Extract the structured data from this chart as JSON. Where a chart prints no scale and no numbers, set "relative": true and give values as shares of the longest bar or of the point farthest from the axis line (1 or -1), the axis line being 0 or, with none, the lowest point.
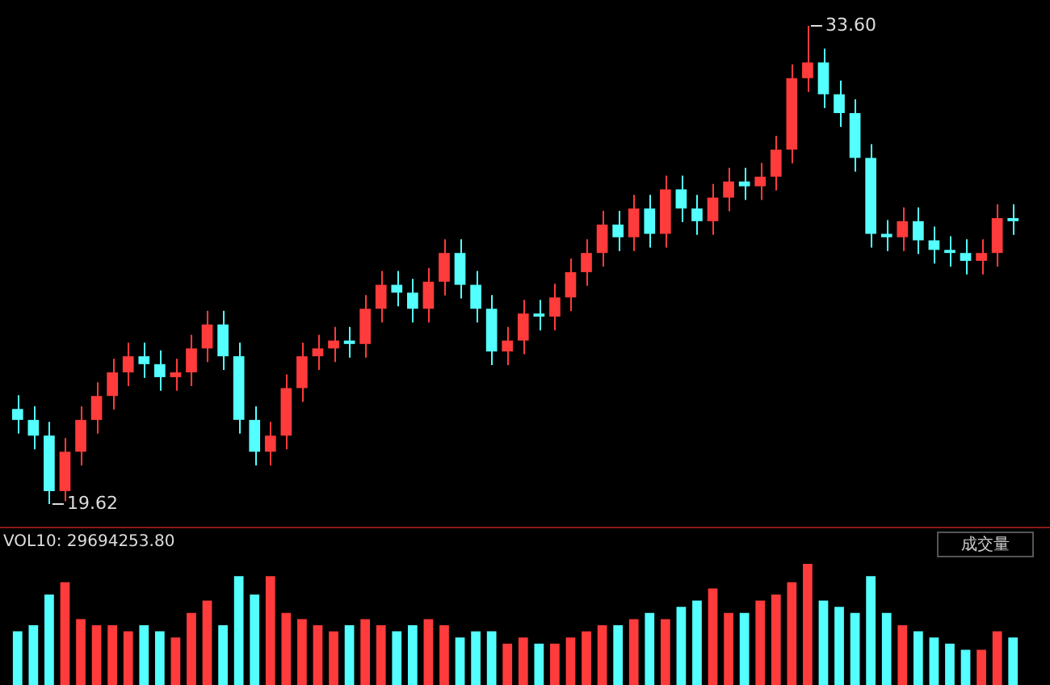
{
  "chart_data": [
    {
      "type": "candlestick",
      "tick_labels": false,
      "categories": [
        null,
        null,
        null,
        null,
        null,
        null,
        null,
        null,
        null,
        null,
        null,
        null,
        null,
        null,
        null,
        null,
        null,
        null,
        null,
        null,
        null,
        null,
        null,
        null,
        null,
        null,
        null,
        null,
        null,
        null,
        null,
        null,
        null,
        null,
        null,
        null,
        null,
        null,
        null,
        null,
        null,
        null,
        null,
        null,
        null,
        null,
        null,
        null,
        null,
        null,
        null,
        null,
        null,
        null,
        null,
        null,
        null,
        null,
        null,
        null,
        null,
        null,
        null,
        null
      ],
      "ohlc": [
        [
          22.4,
          22.8,
          21.68,
          22.08
        ],
        [
          22.08,
          22.48,
          21.22,
          21.62
        ],
        [
          21.62,
          22.02,
          19.62,
          20.0
        ],
        [
          20.0,
          21.55,
          19.7,
          21.15
        ],
        [
          21.15,
          22.48,
          20.75,
          22.08
        ],
        [
          22.08,
          23.18,
          21.68,
          22.78
        ],
        [
          22.78,
          23.87,
          22.38,
          23.47
        ],
        [
          23.47,
          24.34,
          23.07,
          23.94
        ],
        [
          23.94,
          24.34,
          23.31,
          23.71
        ],
        [
          23.71,
          24.11,
          22.93,
          23.33
        ],
        [
          23.33,
          23.87,
          22.93,
          23.47
        ],
        [
          23.47,
          24.57,
          23.07,
          24.17
        ],
        [
          24.17,
          25.27,
          23.77,
          24.87
        ],
        [
          24.87,
          25.27,
          23.54,
          23.94
        ],
        [
          23.94,
          24.34,
          21.68,
          22.08
        ],
        [
          22.08,
          22.48,
          20.75,
          21.15
        ],
        [
          21.15,
          22.02,
          20.75,
          21.62
        ],
        [
          21.62,
          23.41,
          21.22,
          23.01
        ],
        [
          23.01,
          24.34,
          22.61,
          23.94
        ],
        [
          23.94,
          24.57,
          23.54,
          24.17
        ],
        [
          24.17,
          24.8,
          23.77,
          24.4
        ],
        [
          24.4,
          24.8,
          23.9,
          24.3
        ],
        [
          24.3,
          25.73,
          23.9,
          25.33
        ],
        [
          25.33,
          26.43,
          24.93,
          26.03
        ],
        [
          26.03,
          26.43,
          25.4,
          25.8
        ],
        [
          25.8,
          26.2,
          24.93,
          25.33
        ],
        [
          25.33,
          26.52,
          24.93,
          26.12
        ],
        [
          26.12,
          27.36,
          25.72,
          26.96
        ],
        [
          26.96,
          27.36,
          25.63,
          26.03
        ],
        [
          26.03,
          26.43,
          24.93,
          25.33
        ],
        [
          25.33,
          25.73,
          23.68,
          24.08
        ],
        [
          24.08,
          24.8,
          23.68,
          24.4
        ],
        [
          24.4,
          25.59,
          24.0,
          25.19
        ],
        [
          25.19,
          25.59,
          24.7,
          25.1
        ],
        [
          25.1,
          26.06,
          24.7,
          25.66
        ],
        [
          25.66,
          26.8,
          25.26,
          26.4
        ],
        [
          26.4,
          27.36,
          26.0,
          26.96
        ],
        [
          26.96,
          28.19,
          26.56,
          27.79
        ],
        [
          27.79,
          28.19,
          27.02,
          27.42
        ],
        [
          27.42,
          28.66,
          27.02,
          28.26
        ],
        [
          28.26,
          28.66,
          27.12,
          27.52
        ],
        [
          27.52,
          29.22,
          27.12,
          28.82
        ],
        [
          28.82,
          29.22,
          27.86,
          28.26
        ],
        [
          28.26,
          28.66,
          27.49,
          27.89
        ],
        [
          27.89,
          28.98,
          27.49,
          28.58
        ],
        [
          28.58,
          29.45,
          28.18,
          29.05
        ],
        [
          29.05,
          29.45,
          28.51,
          28.91
        ],
        [
          28.91,
          29.59,
          28.51,
          29.19
        ],
        [
          29.19,
          30.38,
          28.79,
          29.98
        ],
        [
          29.98,
          32.47,
          29.58,
          32.07
        ],
        [
          32.07,
          33.6,
          31.67,
          32.53
        ],
        [
          32.53,
          32.93,
          31.2,
          31.6
        ],
        [
          31.6,
          32.0,
          30.65,
          31.05
        ],
        [
          31.05,
          31.45,
          29.34,
          29.74
        ],
        [
          29.74,
          30.14,
          27.12,
          27.52
        ],
        [
          27.52,
          27.92,
          27.02,
          27.42
        ],
        [
          27.42,
          28.29,
          27.02,
          27.89
        ],
        [
          27.89,
          28.29,
          26.93,
          27.33
        ],
        [
          27.33,
          27.73,
          26.65,
          27.05
        ],
        [
          27.05,
          27.45,
          26.56,
          26.96
        ],
        [
          26.96,
          27.36,
          26.33,
          26.73
        ],
        [
          26.73,
          27.36,
          26.33,
          26.96
        ],
        [
          26.96,
          28.38,
          26.56,
          27.98
        ],
        [
          27.98,
          28.38,
          27.49,
          27.89
        ]
      ],
      "colors": [
        "#54ffff",
        "#54ffff",
        "#54ffff",
        "#ff3b3b",
        "#ff3b3b",
        "#ff3b3b",
        "#ff3b3b",
        "#ff3b3b",
        "#54ffff",
        "#54ffff",
        "#ff3b3b",
        "#ff3b3b",
        "#ff3b3b",
        "#54ffff",
        "#54ffff",
        "#54ffff",
        "#ff3b3b",
        "#ff3b3b",
        "#ff3b3b",
        "#ff3b3b",
        "#ff3b3b",
        "#54ffff",
        "#ff3b3b",
        "#ff3b3b",
        "#54ffff",
        "#54ffff",
        "#ff3b3b",
        "#ff3b3b",
        "#54ffff",
        "#54ffff",
        "#54ffff",
        "#ff3b3b",
        "#ff3b3b",
        "#54ffff",
        "#ff3b3b",
        "#ff3b3b",
        "#ff3b3b",
        "#ff3b3b",
        "#54ffff",
        "#ff3b3b",
        "#54ffff",
        "#ff3b3b",
        "#54ffff",
        "#54ffff",
        "#ff3b3b",
        "#ff3b3b",
        "#54ffff",
        "#ff3b3b",
        "#ff3b3b",
        "#ff3b3b",
        "#ff3b3b",
        "#54ffff",
        "#54ffff",
        "#54ffff",
        "#54ffff",
        "#54ffff",
        "#ff3b3b",
        "#54ffff",
        "#54ffff",
        "#54ffff",
        "#54ffff",
        "#ff3b3b",
        "#ff3b3b",
        "#54ffff"
      ],
      "annotations": [
        "33.60",
        "19.62"
      ]
    },
    {
      "type": "bar",
      "relative": true,
      "title": "VOL10: 29694253.80",
      "annotations": [
        "成交量"
      ],
      "categories": [
        null,
        null,
        null,
        null,
        null,
        null,
        null,
        null,
        null,
        null,
        null,
        null,
        null,
        null,
        null,
        null,
        null,
        null,
        null,
        null,
        null,
        null,
        null,
        null,
        null,
        null,
        null,
        null,
        null,
        null,
        null,
        null,
        null,
        null,
        null,
        null,
        null,
        null,
        null,
        null,
        null,
        null,
        null,
        null,
        null,
        null,
        null,
        null,
        null,
        null,
        null,
        null,
        null,
        null,
        null,
        null,
        null,
        null,
        null,
        null,
        null,
        null,
        null,
        null
      ],
      "values": [
        0.45,
        0.5,
        0.75,
        0.85,
        0.55,
        0.5,
        0.5,
        0.45,
        0.5,
        0.45,
        0.4,
        0.6,
        0.7,
        0.5,
        0.9,
        0.75,
        0.9,
        0.6,
        0.55,
        0.5,
        0.45,
        0.5,
        0.55,
        0.5,
        0.45,
        0.5,
        0.55,
        0.5,
        0.4,
        0.45,
        0.45,
        0.35,
        0.4,
        0.35,
        0.35,
        0.4,
        0.45,
        0.5,
        0.5,
        0.55,
        0.6,
        0.55,
        0.65,
        0.7,
        0.8,
        0.6,
        0.6,
        0.7,
        0.75,
        0.85,
        1.0,
        0.7,
        0.65,
        0.6,
        0.9,
        0.6,
        0.5,
        0.45,
        0.4,
        0.35,
        0.3,
        0.3,
        0.45,
        0.4
      ],
      "colors": [
        "#54ffff",
        "#54ffff",
        "#54ffff",
        "#ff3b3b",
        "#ff3b3b",
        "#ff3b3b",
        "#ff3b3b",
        "#ff3b3b",
        "#54ffff",
        "#54ffff",
        "#ff3b3b",
        "#ff3b3b",
        "#ff3b3b",
        "#54ffff",
        "#54ffff",
        "#54ffff",
        "#ff3b3b",
        "#ff3b3b",
        "#ff3b3b",
        "#ff3b3b",
        "#ff3b3b",
        "#54ffff",
        "#ff3b3b",
        "#ff3b3b",
        "#54ffff",
        "#54ffff",
        "#ff3b3b",
        "#ff3b3b",
        "#54ffff",
        "#54ffff",
        "#54ffff",
        "#ff3b3b",
        "#ff3b3b",
        "#54ffff",
        "#ff3b3b",
        "#ff3b3b",
        "#ff3b3b",
        "#ff3b3b",
        "#54ffff",
        "#ff3b3b",
        "#54ffff",
        "#ff3b3b",
        "#54ffff",
        "#54ffff",
        "#ff3b3b",
        "#ff3b3b",
        "#54ffff",
        "#ff3b3b",
        "#ff3b3b",
        "#ff3b3b",
        "#ff3b3b",
        "#54ffff",
        "#54ffff",
        "#54ffff",
        "#54ffff",
        "#54ffff",
        "#ff3b3b",
        "#54ffff",
        "#54ffff",
        "#54ffff",
        "#54ffff",
        "#ff3b3b",
        "#ff3b3b",
        "#54ffff"
      ]
    }
  ]
}
